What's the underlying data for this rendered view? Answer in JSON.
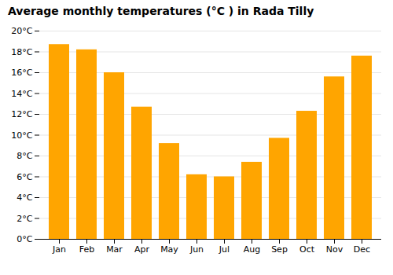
{
  "chart_data": {
    "type": "bar",
    "title": "Average monthly temperatures (°C ) in Rada Tilly",
    "categories": [
      "Jan",
      "Feb",
      "Mar",
      "Apr",
      "May",
      "Jun",
      "Jul",
      "Aug",
      "Sep",
      "Oct",
      "Nov",
      "Dec"
    ],
    "values": [
      18.7,
      18.2,
      16.0,
      12.7,
      9.2,
      6.2,
      6.0,
      7.4,
      9.7,
      12.3,
      15.6,
      17.6
    ],
    "color": "#FFA500",
    "ylim": [
      0,
      20
    ],
    "yticks": [
      {
        "value": 0,
        "label": "0°C"
      },
      {
        "value": 2,
        "label": "2°C"
      },
      {
        "value": 4,
        "label": "4°C"
      },
      {
        "value": 6,
        "label": "6°C"
      },
      {
        "value": 8,
        "label": "8°C"
      },
      {
        "value": 10,
        "label": "10°C"
      },
      {
        "value": 12,
        "label": "12°C"
      },
      {
        "value": 14,
        "label": "14°C"
      },
      {
        "value": 16,
        "label": "16°C"
      },
      {
        "value": 18,
        "label": "18°C"
      },
      {
        "value": 20,
        "label": "20°C"
      }
    ],
    "grid": true
  }
}
